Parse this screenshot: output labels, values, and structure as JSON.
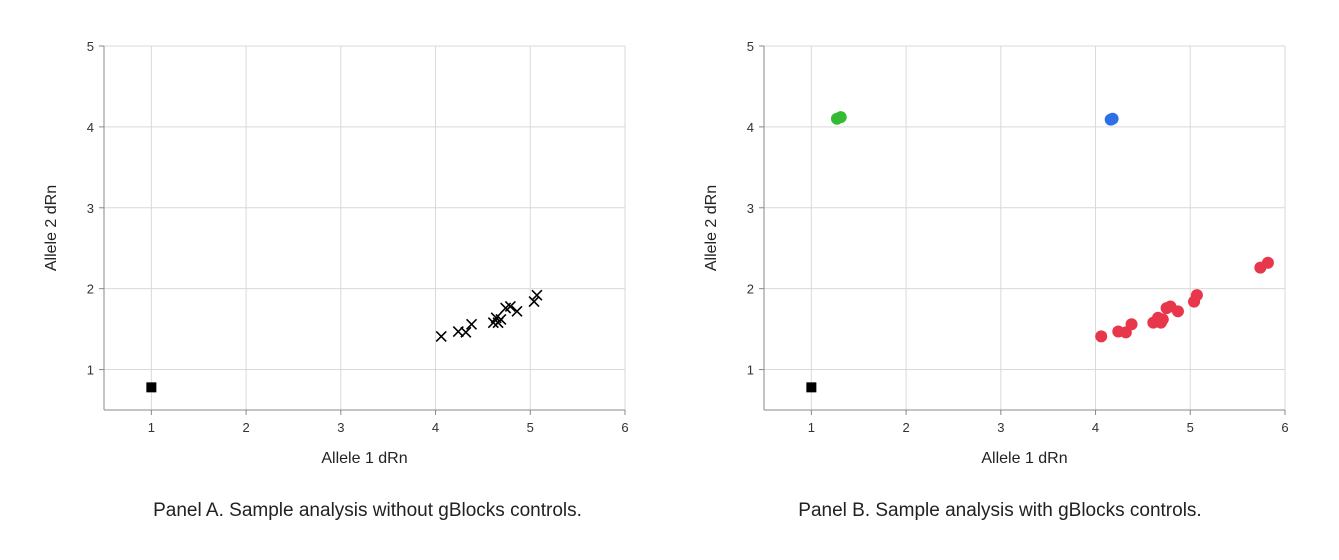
{
  "chart_data": [
    {
      "type": "scatter",
      "panel": "A",
      "caption": "Panel A. Sample analysis without gBlocks controls.",
      "xlabel": "Allele 1 dRn",
      "ylabel": "Allele 2 dRn",
      "xlim": [
        0.5,
        6
      ],
      "ylim": [
        0.5,
        5
      ],
      "xticks": [
        1,
        2,
        3,
        4,
        5,
        6
      ],
      "yticks": [
        1,
        2,
        3,
        4,
        5
      ],
      "grid": true,
      "series": [
        {
          "marker": "square",
          "color": "#000000",
          "points": [
            [
              1.0,
              0.78
            ]
          ]
        },
        {
          "marker": "x",
          "color": "#000000",
          "points": [
            [
              4.06,
              1.41
            ],
            [
              4.24,
              1.47
            ],
            [
              4.32,
              1.46
            ],
            [
              4.38,
              1.56
            ],
            [
              4.61,
              1.58
            ],
            [
              4.64,
              1.64
            ],
            [
              4.66,
              1.58
            ],
            [
              4.69,
              1.62
            ],
            [
              4.74,
              1.76
            ],
            [
              4.79,
              1.78
            ],
            [
              4.86,
              1.72
            ],
            [
              5.04,
              1.84
            ],
            [
              5.07,
              1.92
            ]
          ]
        }
      ]
    },
    {
      "type": "scatter",
      "panel": "B",
      "caption": "Panel B. Sample analysis with gBlocks controls.",
      "xlabel": "Allele 1 dRn",
      "ylabel": "Allele 2 dRn",
      "xlim": [
        0.5,
        6
      ],
      "ylim": [
        0.5,
        5
      ],
      "xticks": [
        1,
        2,
        3,
        4,
        5,
        6
      ],
      "yticks": [
        1,
        2,
        3,
        4,
        5
      ],
      "grid": true,
      "series": [
        {
          "marker": "square",
          "color": "#000000",
          "points": [
            [
              1.0,
              0.78
            ]
          ]
        },
        {
          "marker": "circle",
          "color": "#33bb33",
          "points": [
            [
              1.27,
              4.1
            ],
            [
              1.31,
              4.12
            ]
          ]
        },
        {
          "marker": "circle",
          "color": "#2f6fe6",
          "points": [
            [
              4.16,
              4.09
            ],
            [
              4.18,
              4.1
            ]
          ]
        },
        {
          "marker": "circle",
          "color": "#e8364a",
          "points": [
            [
              4.06,
              1.41
            ],
            [
              4.24,
              1.47
            ],
            [
              4.32,
              1.46
            ],
            [
              4.38,
              1.56
            ],
            [
              4.61,
              1.58
            ],
            [
              4.66,
              1.64
            ],
            [
              4.69,
              1.58
            ],
            [
              4.71,
              1.62
            ],
            [
              4.75,
              1.76
            ],
            [
              4.79,
              1.78
            ],
            [
              4.87,
              1.72
            ],
            [
              5.04,
              1.84
            ],
            [
              5.07,
              1.92
            ],
            [
              5.74,
              2.26
            ],
            [
              5.82,
              2.32
            ]
          ]
        }
      ]
    }
  ]
}
